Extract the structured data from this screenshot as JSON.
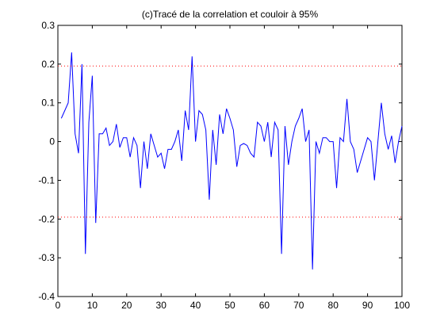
{
  "chart_data": {
    "type": "line",
    "title": "(c)Tracé de la correlation et couloir à 95%",
    "xlabel": "",
    "ylabel": "",
    "xlim": [
      0,
      100
    ],
    "ylim": [
      -0.4,
      0.3
    ],
    "x_ticks": [
      "0",
      "10",
      "20",
      "30",
      "40",
      "50",
      "60",
      "70",
      "80",
      "90",
      "100"
    ],
    "y_ticks": [
      "0.3",
      "0.2",
      "0.1",
      "0",
      "-0.1",
      "-0.2",
      "-0.3",
      "-0.4"
    ],
    "grid": false,
    "series": [
      {
        "color": "#0000ff",
        "style": "solid",
        "x": [
          1,
          2,
          3,
          4,
          5,
          6,
          7,
          8,
          9,
          10,
          11,
          12,
          13,
          14,
          15,
          16,
          17,
          18,
          19,
          20,
          21,
          22,
          23,
          24,
          25,
          26,
          27,
          28,
          29,
          30,
          31,
          32,
          33,
          34,
          35,
          36,
          37,
          38,
          39,
          40,
          41,
          42,
          43,
          44,
          45,
          46,
          47,
          48,
          49,
          50,
          51,
          52,
          53,
          54,
          55,
          56,
          57,
          58,
          59,
          60,
          61,
          62,
          63,
          64,
          65,
          66,
          67,
          68,
          69,
          70,
          71,
          72,
          73,
          74,
          75,
          76,
          77,
          78,
          79,
          80,
          81,
          82,
          83,
          84,
          85,
          86,
          87,
          88,
          89,
          90,
          91,
          92,
          93,
          94,
          95,
          96,
          97,
          98,
          99,
          100
        ],
        "y": [
          0.06,
          0.08,
          0.1,
          0.23,
          0.02,
          -0.03,
          0.2,
          -0.29,
          0.05,
          0.17,
          -0.21,
          0.02,
          0.02,
          0.035,
          -0.01,
          0.0,
          0.045,
          -0.015,
          0.01,
          0.01,
          -0.04,
          0.01,
          -0.01,
          -0.12,
          0.0,
          -0.07,
          0.02,
          -0.01,
          -0.04,
          -0.03,
          -0.07,
          -0.02,
          -0.02,
          0.0,
          0.03,
          -0.05,
          0.08,
          0.03,
          0.22,
          0.0,
          0.08,
          0.07,
          0.03,
          -0.15,
          0.03,
          -0.06,
          0.07,
          0.02,
          0.085,
          0.06,
          0.03,
          -0.065,
          -0.01,
          -0.005,
          -0.01,
          -0.03,
          -0.04,
          0.05,
          0.04,
          0.0,
          0.05,
          -0.04,
          0.05,
          0.03,
          -0.29,
          0.04,
          -0.06,
          0.0,
          0.04,
          0.06,
          0.085,
          0.0,
          0.03,
          -0.33,
          0.0,
          -0.03,
          0.01,
          0.01,
          0.0,
          0.0,
          -0.12,
          0.01,
          0.0,
          0.11,
          0.0,
          -0.02,
          -0.08,
          -0.05,
          -0.02,
          0.01,
          0.0,
          -0.1,
          0.0,
          0.1,
          0.02,
          -0.02,
          0.015,
          -0.055,
          0.0,
          0.04
        ]
      },
      {
        "color": "#ff0000",
        "style": "dotted",
        "x": [
          0,
          100
        ],
        "y": [
          0.195,
          0.195
        ]
      },
      {
        "color": "#ff0000",
        "style": "dotted",
        "x": [
          0,
          100
        ],
        "y": [
          -0.195,
          -0.195
        ]
      }
    ]
  }
}
